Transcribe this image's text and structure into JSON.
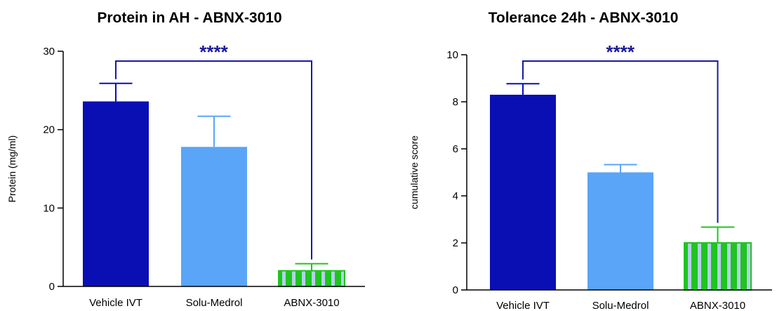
{
  "colors": {
    "vehicle": "#0a0fb4",
    "solu": "#5aa5f7",
    "abnx_stripe_a": "#1fc41f",
    "abnx_stripe_b": "#b4cfe8",
    "bracket": "#1a1a9a",
    "axis": "#000000"
  },
  "chart_data": [
    {
      "type": "bar",
      "title": "Protein in AH - ABNX-3010",
      "xlabel": "",
      "ylabel": "Protein (mg/ml)",
      "ylim": [
        0,
        30
      ],
      "yticks": [
        0,
        10,
        20,
        30
      ],
      "categories": [
        "Vehicle IVT",
        "Solu-Medrol",
        "ABNX-3010"
      ],
      "values": [
        23.6,
        17.8,
        2.0
      ],
      "errors": [
        2.3,
        3.9,
        0.9
      ],
      "significance": {
        "from": "Vehicle IVT",
        "to": "ABNX-3010",
        "label": "****"
      }
    },
    {
      "type": "bar",
      "title": "Tolerance 24h - ABNX-3010",
      "xlabel": "",
      "ylabel": "cumulative score",
      "ylim": [
        0,
        10
      ],
      "yticks": [
        0,
        2,
        4,
        6,
        8,
        10
      ],
      "categories": [
        "Vehicle IVT",
        "Solu-Medrol",
        "ABNX-3010"
      ],
      "values": [
        8.3,
        5.0,
        2.0
      ],
      "errors": [
        0.47,
        0.33,
        0.67
      ],
      "significance": {
        "from": "Vehicle IVT",
        "to": "ABNX-3010",
        "label": "****"
      }
    }
  ]
}
